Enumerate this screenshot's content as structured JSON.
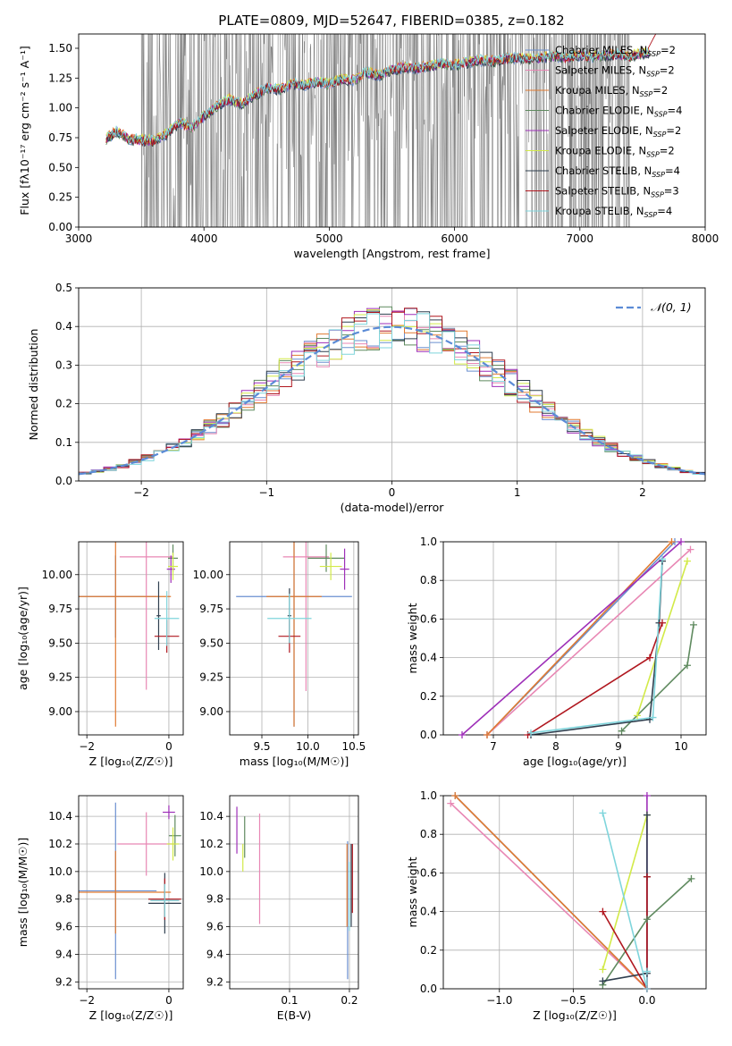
{
  "figure_title": "PLATE=0809, MJD=52647, FIBERID=0385, z=0.182",
  "colors": {
    "chabrier_miles": "#6a8fd0",
    "salpeter_miles": "#e887b4",
    "kroupa_miles": "#e07a30",
    "chabrier_elodie": "#5f8a5f",
    "salpeter_elodie": "#9e2fb8",
    "kroupa_elodie": "#d2ea48",
    "chabrier_stelib": "#2f3f4f",
    "salpeter_stelib": "#b0171f",
    "kroupa_stelib": "#7fd5dc",
    "data_spectrum": "#808080",
    "gaussian": "#5b8bd6",
    "grid": "#b0b0b0"
  },
  "chart_data": [
    {
      "id": "spectrum",
      "type": "line",
      "title": "PLATE=0809, MJD=52647, FIBERID=0385, z=0.182",
      "xlabel": "wavelength [Angstrom, rest frame]",
      "ylabel": "Flux [fλ10⁻¹⁷ erg cm⁻² s⁻¹ A⁻¹]",
      "xlim": [
        3000,
        8000
      ],
      "ylim": [
        0,
        1.62
      ],
      "xticks": [
        "3000",
        "4000",
        "5000",
        "6000",
        "7000",
        "8000"
      ],
      "yticks": [
        "0.00",
        "0.25",
        "0.50",
        "0.75",
        "1.00",
        "1.25",
        "1.50"
      ],
      "grid": false,
      "legend_position": "top-right",
      "legend": [
        {
          "imf": "Chabrier",
          "lib": "MILES",
          "nssp": "2",
          "color_key": "chabrier_miles"
        },
        {
          "imf": "Salpeter",
          "lib": "MILES",
          "nssp": "2",
          "color_key": "salpeter_miles"
        },
        {
          "imf": "Kroupa",
          "lib": "MILES",
          "nssp": "2",
          "color_key": "kroupa_miles"
        },
        {
          "imf": "Chabrier",
          "lib": "ELODIE",
          "nssp": "4",
          "color_key": "chabrier_elodie"
        },
        {
          "imf": "Salpeter",
          "lib": "ELODIE",
          "nssp": "2",
          "color_key": "salpeter_elodie"
        },
        {
          "imf": "Kroupa",
          "lib": "ELODIE",
          "nssp": "2",
          "color_key": "kroupa_elodie"
        },
        {
          "imf": "Chabrier",
          "lib": "STELIB",
          "nssp": "4",
          "color_key": "chabrier_stelib"
        },
        {
          "imf": "Salpeter",
          "lib": "STELIB",
          "nssp": "3",
          "color_key": "salpeter_stelib"
        },
        {
          "imf": "Kroupa",
          "lib": "STELIB",
          "nssp": "4",
          "color_key": "kroupa_stelib"
        }
      ],
      "continuum": {
        "x": [
          3220,
          3300,
          3400,
          3500,
          3600,
          3700,
          3800,
          3900,
          4000,
          4100,
          4200,
          4300,
          4400,
          4500,
          4600,
          4700,
          4800,
          4900,
          5000,
          5100,
          5200,
          5300,
          5400,
          5500,
          5600,
          5700,
          5800,
          5900,
          6000,
          6100,
          6200,
          6300,
          6400,
          6500,
          6600,
          6700,
          6800,
          6900,
          7000,
          7100,
          7200,
          7300,
          7400,
          7500,
          7560
        ],
        "y": [
          0.74,
          0.8,
          0.74,
          0.73,
          0.72,
          0.78,
          0.88,
          0.83,
          0.93,
          1.01,
          1.07,
          1.03,
          1.1,
          1.17,
          1.15,
          1.2,
          1.19,
          1.22,
          1.2,
          1.24,
          1.23,
          1.3,
          1.27,
          1.32,
          1.34,
          1.33,
          1.35,
          1.37,
          1.36,
          1.38,
          1.4,
          1.39,
          1.41,
          1.42,
          1.41,
          1.42,
          1.43,
          1.42,
          1.44,
          1.43,
          1.44,
          1.45,
          1.43,
          1.46,
          1.45
        ]
      },
      "data_range": [
        3500,
        7400
      ]
    },
    {
      "id": "residuals",
      "type": "histogram",
      "xlabel": "(data-model)/error",
      "ylabel": "Normed distribution",
      "xlim": [
        -2.5,
        2.5
      ],
      "ylim": [
        0,
        0.5
      ],
      "xticks": [
        "−2",
        "−1",
        "0",
        "1",
        "2"
      ],
      "yticks": [
        "0.0",
        "0.1",
        "0.2",
        "0.3",
        "0.4",
        "0.5"
      ],
      "grid": true,
      "legend_position": "top-right",
      "legend": [
        {
          "label": "𝒩(0, 1)",
          "color_key": "gaussian"
        }
      ],
      "bin_width": 0.1
    },
    {
      "id": "age_vs_Z",
      "type": "errorbar",
      "xlabel": "Z [log₁₀(Z/Z☉)]",
      "ylabel": "age  [log₁₀(age/yr)]",
      "xlim": [
        -2.2,
        0.35
      ],
      "ylim": [
        8.83,
        10.24
      ],
      "xticks": [
        "−2",
        "0"
      ],
      "yticks": [
        "9.00",
        "9.25",
        "9.50",
        "9.75",
        "10.00"
      ],
      "grid": true,
      "points": [
        {
          "x": -1.3,
          "y": 9.84,
          "xerr": 1.0,
          "yerr": 0.3,
          "color_key": "chabrier_miles"
        },
        {
          "x": -0.55,
          "y": 10.13,
          "xerr": 0.65,
          "yerr": 0.97,
          "color_key": "salpeter_miles"
        },
        {
          "x": -1.3,
          "y": 9.84,
          "xerr": 1.35,
          "yerr": 0.95,
          "color_key": "kroupa_miles"
        },
        {
          "x": 0.1,
          "y": 10.12,
          "xerr": 0.12,
          "yerr": 0.1,
          "color_key": "chabrier_elodie"
        },
        {
          "x": 0.05,
          "y": 10.04,
          "xerr": 0.1,
          "yerr": 0.1,
          "color_key": "salpeter_elodie"
        },
        {
          "x": 0.1,
          "y": 10.06,
          "xerr": 0.12,
          "yerr": 0.1,
          "color_key": "kroupa_elodie"
        },
        {
          "x": -0.25,
          "y": 9.7,
          "xerr": 0.05,
          "yerr": 0.25,
          "color_key": "chabrier_stelib"
        },
        {
          "x": -0.05,
          "y": 9.55,
          "xerr": 0.3,
          "yerr": 0.12,
          "color_key": "salpeter_stelib"
        },
        {
          "x": -0.05,
          "y": 9.68,
          "xerr": 0.3,
          "yerr": 0.2,
          "color_key": "kroupa_stelib"
        }
      ]
    },
    {
      "id": "age_vs_mass",
      "type": "errorbar",
      "xlabel": "mass [log₁₀(M/M☉)]",
      "ylabel": "",
      "xlim": [
        9.15,
        10.55
      ],
      "ylim": [
        8.83,
        10.24
      ],
      "xticks": [
        "9.5",
        "10.0",
        "10.5"
      ],
      "yticks": [
        "9.00",
        "9.25",
        "9.50",
        "9.75",
        "10.00"
      ],
      "grid": true,
      "points": [
        {
          "x": 9.85,
          "y": 9.84,
          "xerr": 0.63,
          "yerr": 0.95,
          "color_key": "chabrier_miles"
        },
        {
          "x": 9.98,
          "y": 10.13,
          "xerr": 0.25,
          "yerr": 0.98,
          "color_key": "salpeter_miles"
        },
        {
          "x": 9.85,
          "y": 9.84,
          "xerr": 0.3,
          "yerr": 0.95,
          "color_key": "kroupa_miles"
        },
        {
          "x": 10.2,
          "y": 10.12,
          "xerr": 0.2,
          "yerr": 0.1,
          "color_key": "chabrier_elodie"
        },
        {
          "x": 10.4,
          "y": 10.04,
          "xerr": 0.05,
          "yerr": 0.15,
          "color_key": "salpeter_elodie"
        },
        {
          "x": 10.25,
          "y": 10.06,
          "xerr": 0.12,
          "yerr": 0.1,
          "color_key": "kroupa_elodie"
        },
        {
          "x": 9.8,
          "y": 9.7,
          "xerr": 0.02,
          "yerr": 0.2,
          "color_key": "chabrier_stelib"
        },
        {
          "x": 9.8,
          "y": 9.55,
          "xerr": 0.12,
          "yerr": 0.12,
          "color_key": "salpeter_stelib"
        },
        {
          "x": 9.8,
          "y": 9.68,
          "xerr": 0.24,
          "yerr": 0.18,
          "color_key": "kroupa_stelib"
        }
      ]
    },
    {
      "id": "weight_vs_age",
      "type": "line",
      "xlabel": "age  [log₁₀(age/yr)]",
      "ylabel": "mass weight",
      "xlim": [
        6.2,
        10.4
      ],
      "ylim": [
        0,
        1.0
      ],
      "xticks": [
        "7",
        "8",
        "9",
        "10"
      ],
      "yticks": [
        "0.0",
        "0.2",
        "0.4",
        "0.6",
        "0.8",
        "1.0"
      ],
      "grid": true,
      "series": [
        {
          "color_key": "chabrier_miles",
          "x": [
            6.9,
            9.9
          ],
          "y": [
            0.0,
            1.0
          ]
        },
        {
          "color_key": "salpeter_miles",
          "x": [
            6.9,
            10.15
          ],
          "y": [
            0.0,
            0.96
          ]
        },
        {
          "color_key": "kroupa_miles",
          "x": [
            6.9,
            9.85
          ],
          "y": [
            0.0,
            1.0
          ]
        },
        {
          "color_key": "chabrier_elodie",
          "x": [
            9.05,
            10.1,
            10.2
          ],
          "y": [
            0.02,
            0.36,
            0.57
          ]
        },
        {
          "color_key": "salpeter_elodie",
          "x": [
            6.5,
            10.0
          ],
          "y": [
            0.0,
            1.0
          ]
        },
        {
          "color_key": "kroupa_elodie",
          "x": [
            9.3,
            10.1
          ],
          "y": [
            0.1,
            0.9
          ]
        },
        {
          "color_key": "chabrier_stelib",
          "x": [
            7.6,
            9.5,
            9.65,
            9.7
          ],
          "y": [
            0.0,
            0.08,
            0.58,
            0.9
          ]
        },
        {
          "color_key": "salpeter_stelib",
          "x": [
            7.55,
            9.5,
            9.7
          ],
          "y": [
            0.0,
            0.4,
            0.58
          ]
        },
        {
          "color_key": "kroupa_stelib",
          "x": [
            7.6,
            9.55,
            9.7
          ],
          "y": [
            0.01,
            0.09,
            0.91
          ]
        }
      ]
    },
    {
      "id": "mass_vs_Z",
      "type": "errorbar",
      "xlabel": "Z [log₁₀(Z/Z☉)]",
      "ylabel": "mass [log₁₀(M/M☉)]",
      "xlim": [
        -2.2,
        0.35
      ],
      "ylim": [
        9.15,
        10.55
      ],
      "xticks": [
        "−2",
        "0"
      ],
      "yticks": [
        "9.2",
        "9.4",
        "9.6",
        "9.8",
        "10.0",
        "10.2",
        "10.4"
      ],
      "grid": true,
      "points": [
        {
          "x": -1.3,
          "y": 9.86,
          "xerr": 1.0,
          "yerr": 0.64,
          "color_key": "chabrier_miles"
        },
        {
          "x": -0.55,
          "y": 10.2,
          "xerr": 0.7,
          "yerr": 0.23,
          "color_key": "salpeter_miles"
        },
        {
          "x": -1.3,
          "y": 9.85,
          "xerr": 1.35,
          "yerr": 0.3,
          "color_key": "kroupa_miles"
        },
        {
          "x": 0.15,
          "y": 10.26,
          "xerr": 0.15,
          "yerr": 0.15,
          "color_key": "chabrier_elodie"
        },
        {
          "x": 0.0,
          "y": 10.43,
          "xerr": 0.15,
          "yerr": 0.05,
          "color_key": "salpeter_elodie"
        },
        {
          "x": 0.1,
          "y": 10.2,
          "xerr": 0.15,
          "yerr": 0.12,
          "color_key": "kroupa_elodie"
        },
        {
          "x": -0.1,
          "y": 9.77,
          "xerr": 0.4,
          "yerr": 0.22,
          "color_key": "chabrier_stelib"
        },
        {
          "x": -0.1,
          "y": 9.8,
          "xerr": 0.4,
          "yerr": 0.15,
          "color_key": "salpeter_stelib"
        },
        {
          "x": -0.1,
          "y": 9.79,
          "xerr": 0.35,
          "yerr": 0.12,
          "color_key": "kroupa_stelib"
        }
      ]
    },
    {
      "id": "mass_vs_ebv",
      "type": "errorbar",
      "xlabel": "E(B-V)",
      "ylabel": "",
      "xlim": [
        0.0,
        0.215
      ],
      "ylim": [
        9.15,
        10.55
      ],
      "xticks": [
        "0.1",
        "0.2"
      ],
      "yticks": [
        "9.2",
        "9.4",
        "9.6",
        "9.8",
        "10.0",
        "10.2",
        "10.4"
      ],
      "grid": true,
      "points": [
        {
          "x": 0.197,
          "y": 9.72,
          "xerr": 0,
          "yerr": 0.5,
          "color_key": "chabrier_miles"
        },
        {
          "x": 0.05,
          "y": 10.02,
          "xerr": 0,
          "yerr": 0.4,
          "color_key": "salpeter_miles"
        },
        {
          "x": 0.196,
          "y": 9.9,
          "xerr": 0,
          "yerr": 0.3,
          "color_key": "kroupa_miles"
        },
        {
          "x": 0.025,
          "y": 10.25,
          "xerr": 0,
          "yerr": 0.15,
          "color_key": "chabrier_elodie"
        },
        {
          "x": 0.012,
          "y": 10.3,
          "xerr": 0,
          "yerr": 0.17,
          "color_key": "salpeter_elodie"
        },
        {
          "x": 0.022,
          "y": 10.1,
          "xerr": 0,
          "yerr": 0.1,
          "color_key": "kroupa_elodie"
        },
        {
          "x": 0.203,
          "y": 9.9,
          "xerr": 0,
          "yerr": 0.3,
          "color_key": "chabrier_stelib"
        },
        {
          "x": 0.205,
          "y": 9.95,
          "xerr": 0,
          "yerr": 0.25,
          "color_key": "salpeter_stelib"
        },
        {
          "x": 0.2,
          "y": 9.82,
          "xerr": 0,
          "yerr": 0.25,
          "color_key": "kroupa_stelib"
        }
      ]
    },
    {
      "id": "weight_vs_Z",
      "type": "line",
      "xlabel": "Z [log₁₀(Z/Z☉)]",
      "ylabel": "mass weight",
      "xlim": [
        -1.38,
        0.4
      ],
      "ylim": [
        0,
        1.0
      ],
      "xticks": [
        "−1.0",
        "−0.5",
        "0.0"
      ],
      "yticks": [
        "0.0",
        "0.2",
        "0.4",
        "0.6",
        "0.8",
        "1.0"
      ],
      "grid": true,
      "series": [
        {
          "color_key": "chabrier_miles",
          "x": [
            -1.3,
            0.0
          ],
          "y": [
            1.0,
            0.0
          ]
        },
        {
          "color_key": "salpeter_miles",
          "x": [
            -1.33,
            0.0
          ],
          "y": [
            0.96,
            0.0
          ]
        },
        {
          "color_key": "kroupa_miles",
          "x": [
            -1.3,
            0.0
          ],
          "y": [
            1.0,
            0.0
          ]
        },
        {
          "color_key": "chabrier_elodie",
          "x": [
            -0.3,
            0.0,
            0.3
          ],
          "y": [
            0.02,
            0.36,
            0.57
          ]
        },
        {
          "color_key": "salpeter_elodie",
          "x": [
            0.0,
            0.0
          ],
          "y": [
            0.0,
            1.0
          ]
        },
        {
          "color_key": "kroupa_elodie",
          "x": [
            -0.3,
            0.0
          ],
          "y": [
            0.1,
            0.9
          ]
        },
        {
          "color_key": "chabrier_stelib",
          "x": [
            -0.3,
            0.0,
            0.0,
            0.0
          ],
          "y": [
            0.04,
            0.08,
            0.58,
            0.9
          ]
        },
        {
          "color_key": "salpeter_stelib",
          "x": [
            -0.3,
            0.0,
            0.0
          ],
          "y": [
            0.4,
            0.0,
            0.58
          ]
        },
        {
          "color_key": "kroupa_stelib",
          "x": [
            -0.3,
            0.0,
            0.0
          ],
          "y": [
            0.91,
            0.0,
            0.09
          ]
        }
      ]
    }
  ]
}
